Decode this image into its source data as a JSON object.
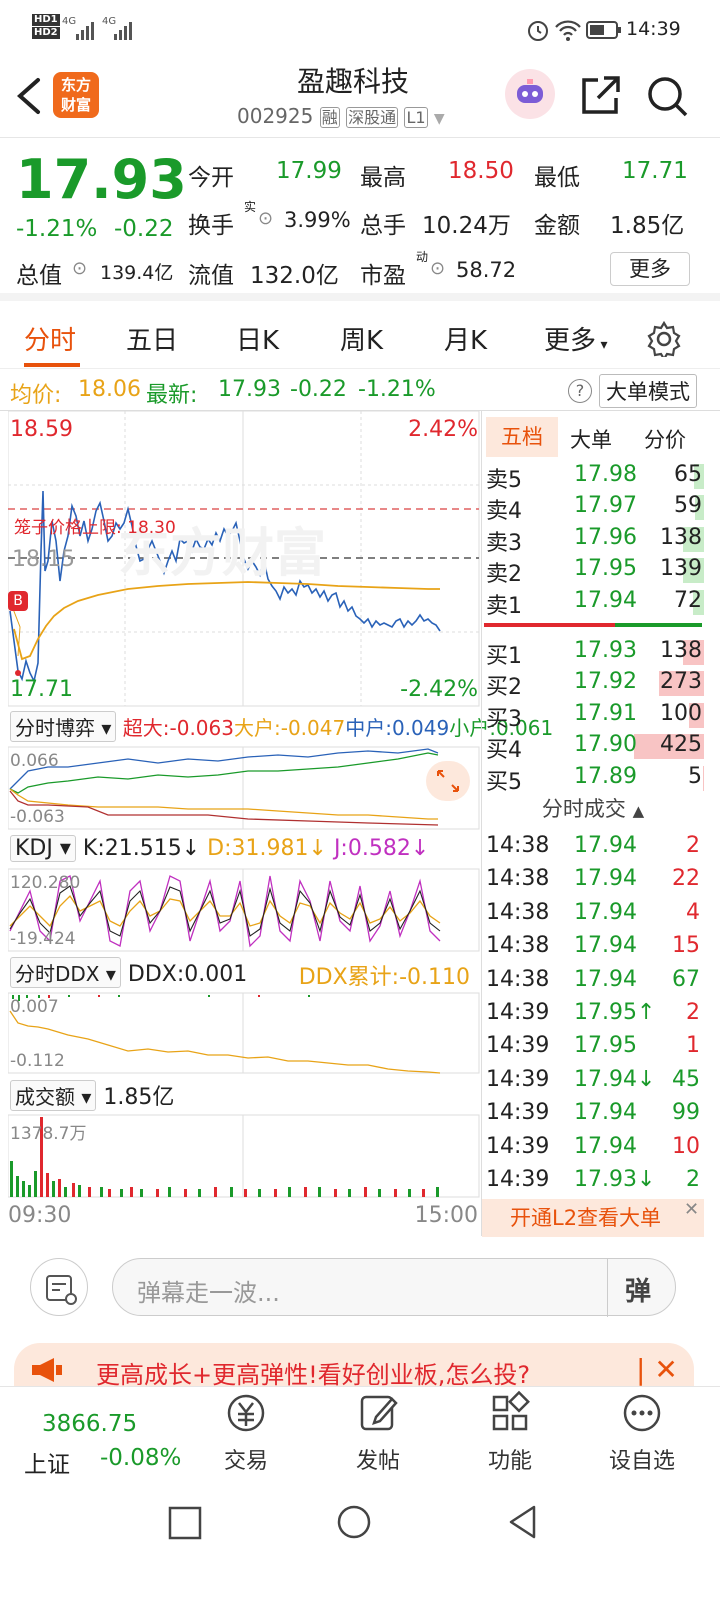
{
  "status": {
    "net1": "HD1",
    "net2": "HD2",
    "sig1": "4G",
    "sig2": "4G",
    "time": "14:39"
  },
  "header": {
    "logo_line1": "东方",
    "logo_line2": "财富",
    "name": "盈趣科技",
    "code": "002925",
    "tag1": "融",
    "tag2": "深股通",
    "tag3": "L1"
  },
  "quote": {
    "price": "17.93",
    "change_pct": "-1.21%",
    "change": "-0.22",
    "open_label": "今开",
    "open": "17.99",
    "high_label": "最高",
    "high": "18.50",
    "low_label": "最低",
    "low": "17.71",
    "turnover_label": "换手",
    "turnover_sup": "实",
    "turnover": "3.99%",
    "vol_label": "总手",
    "vol": "10.24万",
    "amount_label": "金额",
    "amount": "1.85亿",
    "mcap_label": "总值",
    "mcap": "139.4亿",
    "float_label": "流值",
    "float": "132.0亿",
    "pe_label": "市盈",
    "pe_sup": "动",
    "pe": "58.72",
    "more": "更多"
  },
  "tabs": [
    "分时",
    "五日",
    "日K",
    "周K",
    "月K",
    "更多"
  ],
  "avgline": {
    "avg_label": "均价:",
    "avg": "18.06",
    "last_label": "最新:",
    "last": "17.93",
    "chg": "-0.22",
    "pct": "-1.21%",
    "mode": "大单模式",
    "help": "?"
  },
  "chart": {
    "top_price": "18.59",
    "top_pct": "2.42%",
    "bot_price": "17.71",
    "bot_pct": "-2.42%",
    "mid_price": "18.15",
    "limit_label": "笼子价格上限:",
    "limit": "18.30",
    "watermark": "东方财富",
    "time_start": "09:30",
    "time_end": "15:00",
    "ind1": {
      "name": "分时博弈",
      "s1": "超大:-0.063",
      "s2": "大户:-0.047",
      "s3": "中户:0.049",
      "s4": "小户:0.061",
      "top": "0.066",
      "bot": "-0.063"
    },
    "ind2": {
      "name": "KDJ",
      "k": "K:21.515↓",
      "d": "D:31.981↓",
      "j": "J:0.582↓",
      "top": "120.280",
      "bot": "-19.424"
    },
    "ind3": {
      "name": "分时DDX",
      "ddx": "DDX:0.001",
      "sum": "DDX累计:-0.110",
      "top": "0.007",
      "bot": "-0.112"
    },
    "ind4": {
      "name": "成交额",
      "val": "1.85亿",
      "top": "1378.7万"
    }
  },
  "book": {
    "tabs": [
      "五档",
      "大单",
      "分价"
    ],
    "sells": [
      {
        "l": "卖5",
        "p": "17.98",
        "v": "65",
        "w": 0.14
      },
      {
        "l": "卖4",
        "p": "17.97",
        "v": "59",
        "w": 0.13
      },
      {
        "l": "卖3",
        "p": "17.96",
        "v": "138",
        "w": 0.3
      },
      {
        "l": "卖2",
        "p": "17.95",
        "v": "139",
        "w": 0.3
      },
      {
        "l": "卖1",
        "p": "17.94",
        "v": "72",
        "w": 0.16
      }
    ],
    "buys": [
      {
        "l": "买1",
        "p": "17.93",
        "v": "138",
        "w": 0.3
      },
      {
        "l": "买2",
        "p": "17.92",
        "v": "273",
        "w": 0.64
      },
      {
        "l": "买3",
        "p": "17.91",
        "v": "100",
        "w": 0.22
      },
      {
        "l": "买4",
        "p": "17.90",
        "v": "425",
        "w": 1.0
      },
      {
        "l": "买5",
        "p": "17.89",
        "v": "5",
        "w": 0.02
      }
    ],
    "trades_label": "分时成交",
    "trades": [
      {
        "t": "14:38",
        "p": "17.94",
        "v": "2",
        "c": "r"
      },
      {
        "t": "14:38",
        "p": "17.94",
        "v": "22",
        "c": "r"
      },
      {
        "t": "14:38",
        "p": "17.94",
        "v": "4",
        "c": "r"
      },
      {
        "t": "14:38",
        "p": "17.94",
        "v": "15",
        "c": "r"
      },
      {
        "t": "14:38",
        "p": "17.94",
        "v": "67",
        "c": "g"
      },
      {
        "t": "14:39",
        "p": "17.95↑",
        "v": "2",
        "c": "r"
      },
      {
        "t": "14:39",
        "p": "17.95",
        "v": "1",
        "c": "r"
      },
      {
        "t": "14:39",
        "p": "17.94↓",
        "v": "45",
        "c": "g"
      },
      {
        "t": "14:39",
        "p": "17.94",
        "v": "99",
        "c": "g"
      },
      {
        "t": "14:39",
        "p": "17.94",
        "v": "10",
        "c": "r"
      },
      {
        "t": "14:39",
        "p": "17.93↓",
        "v": "2",
        "c": "g"
      }
    ],
    "l2": "开通L2查看大单"
  },
  "input": {
    "placeholder": "弹幕走一波...",
    "btn": "弹"
  },
  "banner": {
    "text": "更高成长+更高弹性!看好创业板,怎么投?"
  },
  "nav": {
    "index_val": "3866.75",
    "index_name": "上证",
    "index_pct": "-0.08%",
    "items": [
      "交易",
      "发帖",
      "功能",
      "设自选"
    ]
  },
  "colors": {
    "up": "#e0282e",
    "down": "#1a9a2a",
    "avg": "#e8a317",
    "price_line": "#2a62b8",
    "brand": "#f06a1c"
  }
}
